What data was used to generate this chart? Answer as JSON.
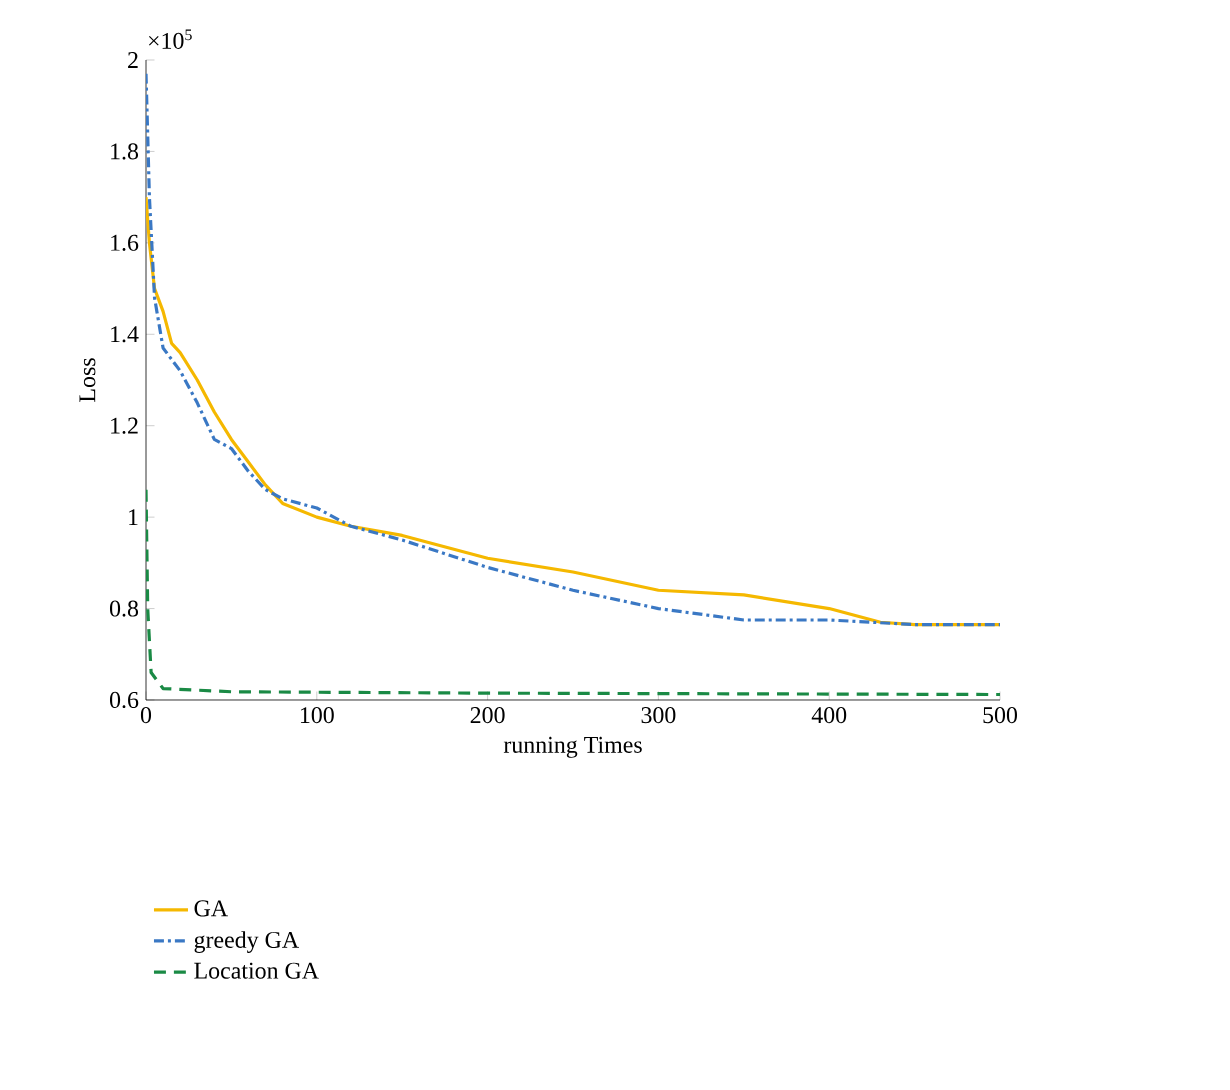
{
  "chart_data": {
    "type": "line",
    "xlabel": "running Times",
    "ylabel": "Loss",
    "annotations": [
      "×10$^{5}$"
    ],
    "xlim": [
      0,
      500
    ],
    "ylim": [
      0.6,
      2
    ],
    "xticks": [
      0,
      100,
      200,
      300,
      400,
      500
    ],
    "yticks": [
      0.6,
      0.8,
      1,
      1.2,
      1.4,
      1.6,
      1.8,
      2
    ],
    "grid": false,
    "legend": "bottom",
    "marker": "none",
    "series": [
      {
        "name": "GA",
        "color": "#f5b800",
        "line_style": "solid",
        "x": [
          0,
          2,
          5,
          10,
          15,
          20,
          30,
          40,
          50,
          60,
          70,
          80,
          100,
          120,
          150,
          200,
          250,
          300,
          350,
          400,
          430,
          450,
          500
        ],
        "values": [
          1.7,
          1.6,
          1.5,
          1.45,
          1.38,
          1.36,
          1.3,
          1.23,
          1.17,
          1.12,
          1.07,
          1.03,
          1.0,
          0.98,
          0.96,
          0.91,
          0.88,
          0.84,
          0.83,
          0.8,
          0.77,
          0.765,
          0.765
        ]
      },
      {
        "name": "greedy GA",
        "color": "#3a78c4",
        "line_style": "dashdotted",
        "x": [
          0,
          2,
          5,
          10,
          20,
          30,
          40,
          50,
          60,
          70,
          80,
          100,
          120,
          150,
          200,
          250,
          300,
          350,
          400,
          450,
          500
        ],
        "values": [
          1.97,
          1.7,
          1.48,
          1.37,
          1.32,
          1.25,
          1.17,
          1.15,
          1.1,
          1.06,
          1.04,
          1.02,
          0.98,
          0.95,
          0.89,
          0.84,
          0.8,
          0.775,
          0.775,
          0.765,
          0.765
        ]
      },
      {
        "name": "Location GA",
        "color": "#1a8a45",
        "line_style": "dashed",
        "x": [
          0,
          1,
          3,
          10,
          50,
          200,
          500
        ],
        "values": [
          1.06,
          0.8,
          0.66,
          0.625,
          0.618,
          0.615,
          0.612
        ]
      }
    ]
  }
}
